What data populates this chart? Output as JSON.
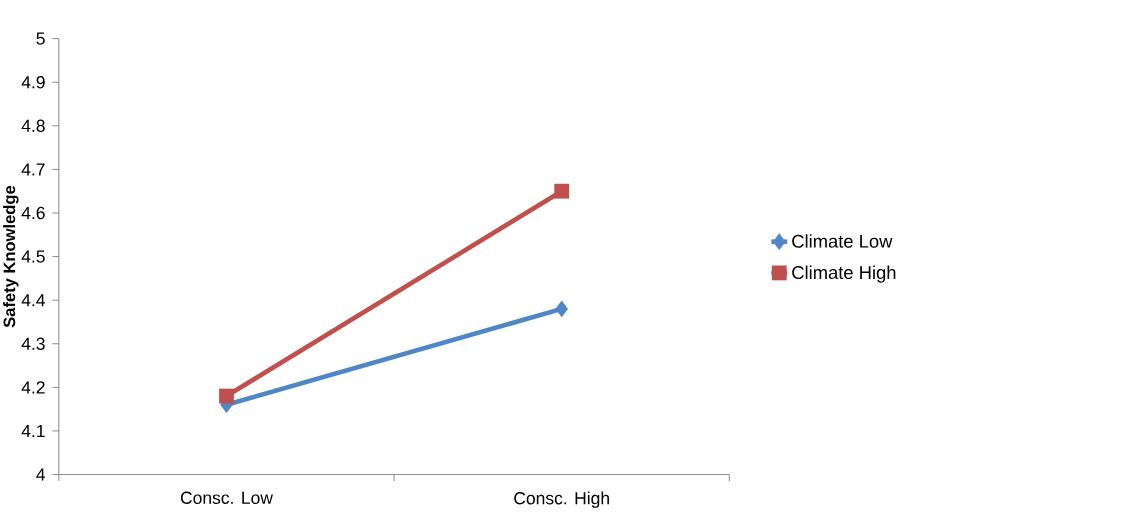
{
  "chart_data": {
    "type": "line",
    "ylabel": "Safety Knowledge",
    "categories": [
      "Consc. Low",
      "Consc. High"
    ],
    "series": [
      {
        "name": "Climate Low",
        "color": "#4f86c6",
        "values": [
          4.16,
          4.38
        ],
        "marker": "diamond"
      },
      {
        "name": "Climate High",
        "color": "#c0504d",
        "values": [
          4.18,
          4.65
        ],
        "marker": "square"
      }
    ],
    "ylim": [
      4,
      5
    ],
    "yticks": [
      4,
      4.1,
      4.2,
      4.3,
      4.4,
      4.5,
      4.6,
      4.7,
      4.8,
      4.9,
      5
    ],
    "grid": false,
    "legend": "right",
    "line_style": "solid"
  }
}
